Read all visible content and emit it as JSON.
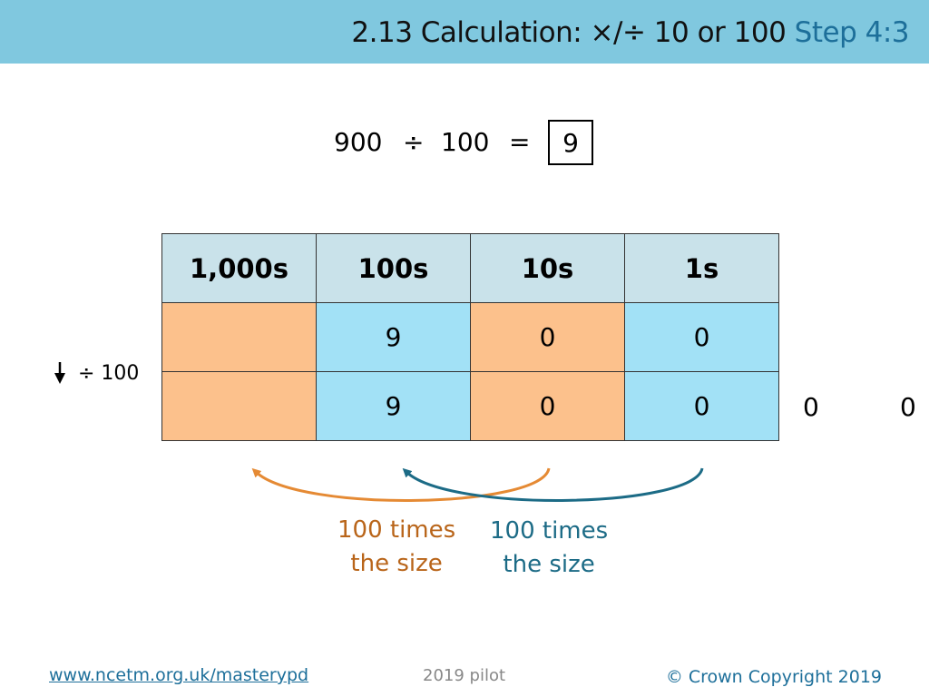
{
  "header": {
    "title": "2.13 Calculation: ×/÷ 10 or 100",
    "step": "Step 4:3"
  },
  "equation": {
    "dividend": "900",
    "operator": "÷",
    "divisor": "100",
    "equals": "=",
    "answer": "9"
  },
  "table": {
    "headers": [
      "1,000s",
      "100s",
      "10s",
      "1s"
    ],
    "rows": [
      [
        "",
        "9",
        "0",
        "0"
      ],
      [
        "",
        "9",
        "0",
        "0"
      ]
    ],
    "overflow_digits": [
      "0",
      "0"
    ]
  },
  "side_operation": "÷ 100",
  "notes": {
    "orange": {
      "line1": "100 times",
      "line2": "the size"
    },
    "blue": {
      "line1": "100 times",
      "line2": "the size"
    }
  },
  "colors": {
    "header_bg": "#80c8df",
    "orange_cell": "#fcc18c",
    "blue_cell": "#a2e1f6",
    "orange_arrow": "#e58a34",
    "blue_arrow": "#1c6b86"
  },
  "footer": {
    "link": "www.ncetm.org.uk/masterypd",
    "pilot": "2019 pilot",
    "copyright": "© Crown Copyright 2019"
  }
}
